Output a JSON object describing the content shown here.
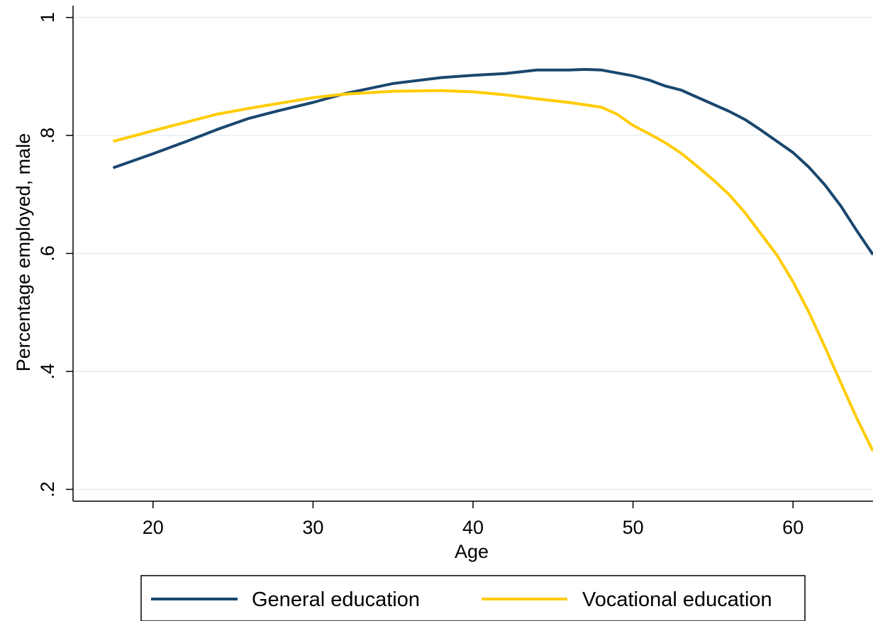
{
  "chart_data": {
    "type": "line",
    "title": "",
    "xlabel": "Age",
    "ylabel": "Percentage employed, male",
    "xlim": [
      15,
      65
    ],
    "ylim": [
      0.18,
      1.02
    ],
    "xticks": [
      {
        "value": 20,
        "label": "20"
      },
      {
        "value": 30,
        "label": "30"
      },
      {
        "value": 40,
        "label": "40"
      },
      {
        "value": 50,
        "label": "50"
      },
      {
        "value": 60,
        "label": "60"
      }
    ],
    "yticks": [
      {
        "value": 0.2,
        "label": ".2"
      },
      {
        "value": 0.4,
        "label": ".4"
      },
      {
        "value": 0.6,
        "label": ".6"
      },
      {
        "value": 0.8,
        "label": ".8"
      },
      {
        "value": 1.0,
        "label": "1"
      }
    ],
    "grid": "horizontal",
    "legend_position": "bottom",
    "series": [
      {
        "name": "General education",
        "color": "#1a476f",
        "x": [
          17.5,
          20,
          22,
          24,
          26,
          28,
          30,
          32,
          35,
          38,
          40,
          42,
          44,
          46,
          47,
          48,
          50,
          51,
          52,
          53,
          54,
          55,
          56,
          57,
          58,
          59,
          60,
          61,
          62,
          63,
          64,
          65
        ],
        "y": [
          0.745,
          0.769,
          0.789,
          0.81,
          0.829,
          0.843,
          0.856,
          0.871,
          0.888,
          0.898,
          0.902,
          0.905,
          0.911,
          0.911,
          0.912,
          0.911,
          0.901,
          0.894,
          0.884,
          0.877,
          0.865,
          0.853,
          0.841,
          0.827,
          0.809,
          0.79,
          0.771,
          0.746,
          0.716,
          0.68,
          0.638,
          0.598
        ]
      },
      {
        "name": "Vocational education",
        "color": "#ffcc00",
        "x": [
          17.5,
          20,
          22,
          24,
          26,
          28,
          30,
          32,
          35,
          38,
          40,
          42,
          44,
          46,
          48,
          49,
          50,
          51,
          52,
          53,
          54,
          55,
          56,
          57,
          58,
          59,
          60,
          61,
          62,
          63,
          64,
          65
        ],
        "y": [
          0.79,
          0.808,
          0.822,
          0.836,
          0.846,
          0.855,
          0.864,
          0.87,
          0.875,
          0.876,
          0.874,
          0.869,
          0.862,
          0.856,
          0.848,
          0.836,
          0.817,
          0.803,
          0.788,
          0.77,
          0.748,
          0.725,
          0.7,
          0.669,
          0.633,
          0.597,
          0.552,
          0.5,
          0.441,
          0.38,
          0.32,
          0.265
        ]
      }
    ]
  }
}
